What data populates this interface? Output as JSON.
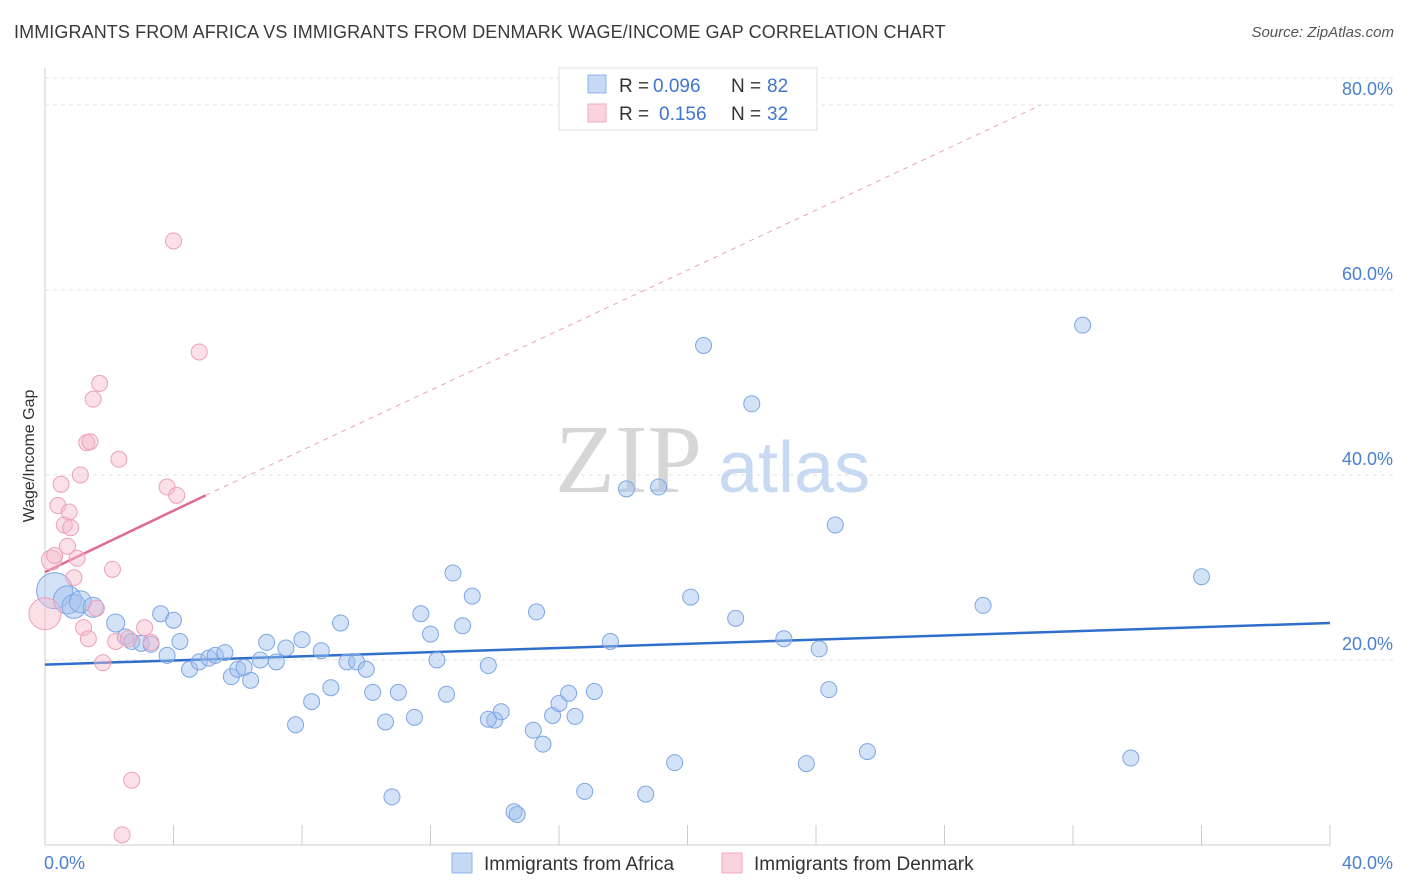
{
  "title": "IMMIGRANTS FROM AFRICA VS IMMIGRANTS FROM DENMARK WAGE/INCOME GAP CORRELATION CHART",
  "source": "Source: ZipAtlas.com",
  "watermark": {
    "zip": "ZIP",
    "atlas": "atlas"
  },
  "colors": {
    "africa": "#8fb3ea",
    "denmark": "#f1a8bf",
    "africa_line": "#2f6fcc",
    "denmark_line": "#e06b92",
    "tick": "#4a7fd0"
  },
  "legend": {
    "r_label": "R =",
    "n_label": "N =",
    "rows": [
      {
        "series": "africa",
        "r": "0.096",
        "n": "82"
      },
      {
        "series": "denmark",
        "r": "0.156",
        "n": "32"
      }
    ]
  },
  "chart_data": {
    "type": "scatter",
    "title": "IMMIGRANTS FROM AFRICA VS IMMIGRANTS FROM DENMARK WAGE/INCOME GAP CORRELATION CHART",
    "xlabel": "",
    "ylabel": "Wage/Income Gap",
    "xlim": [
      0,
      40
    ],
    "ylim": [
      0,
      84
    ],
    "x_ticks": [
      "0.0%",
      "40.0%"
    ],
    "y_ticks": [
      {
        "value": 20,
        "label": "20.0%"
      },
      {
        "value": 40,
        "label": "40.0%"
      },
      {
        "value": 60,
        "label": "60.0%"
      },
      {
        "value": 80,
        "label": "80.0%"
      }
    ],
    "grid": "horizontal-dashed",
    "legend_position": "top-center",
    "series": [
      {
        "name": "Immigrants from Africa",
        "color": "#8fb3ea",
        "trend": {
          "x": [
            0,
            40
          ],
          "y": [
            19.5,
            24.0
          ]
        },
        "points": [
          [
            0.3,
            27.5,
            1.8
          ],
          [
            0.7,
            26.5,
            1.4
          ],
          [
            0.9,
            25.8,
            1.2
          ],
          [
            1.1,
            26.3,
            1.1
          ],
          [
            1.5,
            25.7,
            1.0
          ],
          [
            2.2,
            24.0,
            0.9
          ],
          [
            2.5,
            22.5,
            0.8
          ],
          [
            2.7,
            22.0,
            0.8
          ],
          [
            3.0,
            21.8,
            0.8
          ],
          [
            3.3,
            21.7,
            0.8
          ],
          [
            3.6,
            25.0,
            0.8
          ],
          [
            3.8,
            20.5,
            0.8
          ],
          [
            4.0,
            24.3,
            0.8
          ],
          [
            4.2,
            22.0,
            0.8
          ],
          [
            4.5,
            19.0,
            0.8
          ],
          [
            4.8,
            19.8,
            0.8
          ],
          [
            5.1,
            20.2,
            0.8
          ],
          [
            5.3,
            20.5,
            0.8
          ],
          [
            5.6,
            20.8,
            0.8
          ],
          [
            5.8,
            18.2,
            0.8
          ],
          [
            6.0,
            19.0,
            0.8
          ],
          [
            6.4,
            17.8,
            0.8
          ],
          [
            6.7,
            20.0,
            0.8
          ],
          [
            6.9,
            21.9,
            0.8
          ],
          [
            7.2,
            19.8,
            0.8
          ],
          [
            7.5,
            21.3,
            0.8
          ],
          [
            7.8,
            13.0,
            0.8
          ],
          [
            8.0,
            22.2,
            0.8
          ],
          [
            8.3,
            15.5,
            0.8
          ],
          [
            8.6,
            21.0,
            0.8
          ],
          [
            8.9,
            17.0,
            0.8
          ],
          [
            9.2,
            24.0,
            0.8
          ],
          [
            9.4,
            19.8,
            0.8
          ],
          [
            9.7,
            19.8,
            0.8
          ],
          [
            10.0,
            19.0,
            0.8
          ],
          [
            10.2,
            16.5,
            0.8
          ],
          [
            10.6,
            13.3,
            0.8
          ],
          [
            10.8,
            5.2,
            0.8
          ],
          [
            11.0,
            16.5,
            0.8
          ],
          [
            11.5,
            13.8,
            0.8
          ],
          [
            11.7,
            25.0,
            0.8
          ],
          [
            12.0,
            22.8,
            0.8
          ],
          [
            12.2,
            20.0,
            0.8
          ],
          [
            12.5,
            16.3,
            0.8
          ],
          [
            12.7,
            29.4,
            0.8
          ],
          [
            13.0,
            23.7,
            0.8
          ],
          [
            13.3,
            26.9,
            0.8
          ],
          [
            13.8,
            19.4,
            0.8
          ],
          [
            14.0,
            13.5,
            0.8
          ],
          [
            14.2,
            14.4,
            0.8
          ],
          [
            14.6,
            3.6,
            0.8
          ],
          [
            14.7,
            3.3,
            0.8
          ],
          [
            15.2,
            12.4,
            0.8
          ],
          [
            15.5,
            10.9,
            0.8
          ],
          [
            15.3,
            25.2,
            0.8
          ],
          [
            15.8,
            14.0,
            0.8
          ],
          [
            16.0,
            15.3,
            0.8
          ],
          [
            16.3,
            16.4,
            0.8
          ],
          [
            16.5,
            13.9,
            0.8
          ],
          [
            16.8,
            5.8,
            0.8
          ],
          [
            17.1,
            16.6,
            0.8
          ],
          [
            17.6,
            22.0,
            0.8
          ],
          [
            18.1,
            38.5,
            0.8
          ],
          [
            18.7,
            5.5,
            0.8
          ],
          [
            19.1,
            38.7,
            0.8
          ],
          [
            19.6,
            8.9,
            0.8
          ],
          [
            20.1,
            26.8,
            0.8
          ],
          [
            20.5,
            54.0,
            0.8
          ],
          [
            21.5,
            24.5,
            0.8
          ],
          [
            22.0,
            47.7,
            0.8
          ],
          [
            23.0,
            22.3,
            0.8
          ],
          [
            23.7,
            8.8,
            0.8
          ],
          [
            24.1,
            21.2,
            0.8
          ],
          [
            24.4,
            16.8,
            0.8
          ],
          [
            24.6,
            34.6,
            0.8
          ],
          [
            25.6,
            10.1,
            0.8
          ],
          [
            29.2,
            25.9,
            0.8
          ],
          [
            32.3,
            56.2,
            0.8
          ],
          [
            33.8,
            9.4,
            0.8
          ],
          [
            36.0,
            29.0,
            0.8
          ],
          [
            13.8,
            13.6,
            0.8
          ],
          [
            6.2,
            19.2,
            0.8
          ]
        ]
      },
      {
        "name": "Immigrants from Denmark",
        "color": "#f1a8bf",
        "trend": {
          "x": [
            0,
            5.0
          ],
          "y": [
            29.5,
            37.8
          ]
        },
        "trend_extension": {
          "x": [
            5.0,
            31.0
          ],
          "y": [
            37.8,
            80.0
          ]
        },
        "points": [
          [
            0.0,
            25.0,
            1.6
          ],
          [
            0.2,
            30.8,
            1.0
          ],
          [
            0.3,
            31.3,
            0.8
          ],
          [
            0.4,
            36.7,
            0.8
          ],
          [
            0.5,
            39.0,
            0.8
          ],
          [
            0.6,
            34.6,
            0.8
          ],
          [
            0.7,
            32.3,
            0.8
          ],
          [
            0.75,
            36.0,
            0.8
          ],
          [
            0.8,
            34.3,
            0.8
          ],
          [
            0.9,
            28.9,
            0.8
          ],
          [
            1.0,
            31.0,
            0.8
          ],
          [
            1.1,
            40.0,
            0.8
          ],
          [
            1.2,
            23.5,
            0.8
          ],
          [
            1.3,
            43.5,
            0.8
          ],
          [
            1.35,
            22.3,
            0.8
          ],
          [
            1.4,
            43.6,
            0.8
          ],
          [
            1.5,
            48.2,
            0.8
          ],
          [
            1.6,
            25.6,
            0.8
          ],
          [
            1.7,
            49.9,
            0.8
          ],
          [
            1.8,
            19.7,
            0.8
          ],
          [
            2.1,
            29.8,
            0.8
          ],
          [
            2.2,
            22.0,
            0.8
          ],
          [
            2.3,
            41.7,
            0.8
          ],
          [
            2.4,
            1.1,
            0.8
          ],
          [
            2.6,
            22.3,
            0.8
          ],
          [
            2.7,
            7.0,
            0.8
          ],
          [
            3.1,
            23.5,
            0.8
          ],
          [
            3.3,
            21.9,
            0.8
          ],
          [
            3.8,
            38.7,
            0.8
          ],
          [
            4.0,
            65.3,
            0.8
          ],
          [
            4.1,
            37.8,
            0.8
          ],
          [
            4.8,
            53.3,
            0.8
          ]
        ]
      }
    ]
  }
}
